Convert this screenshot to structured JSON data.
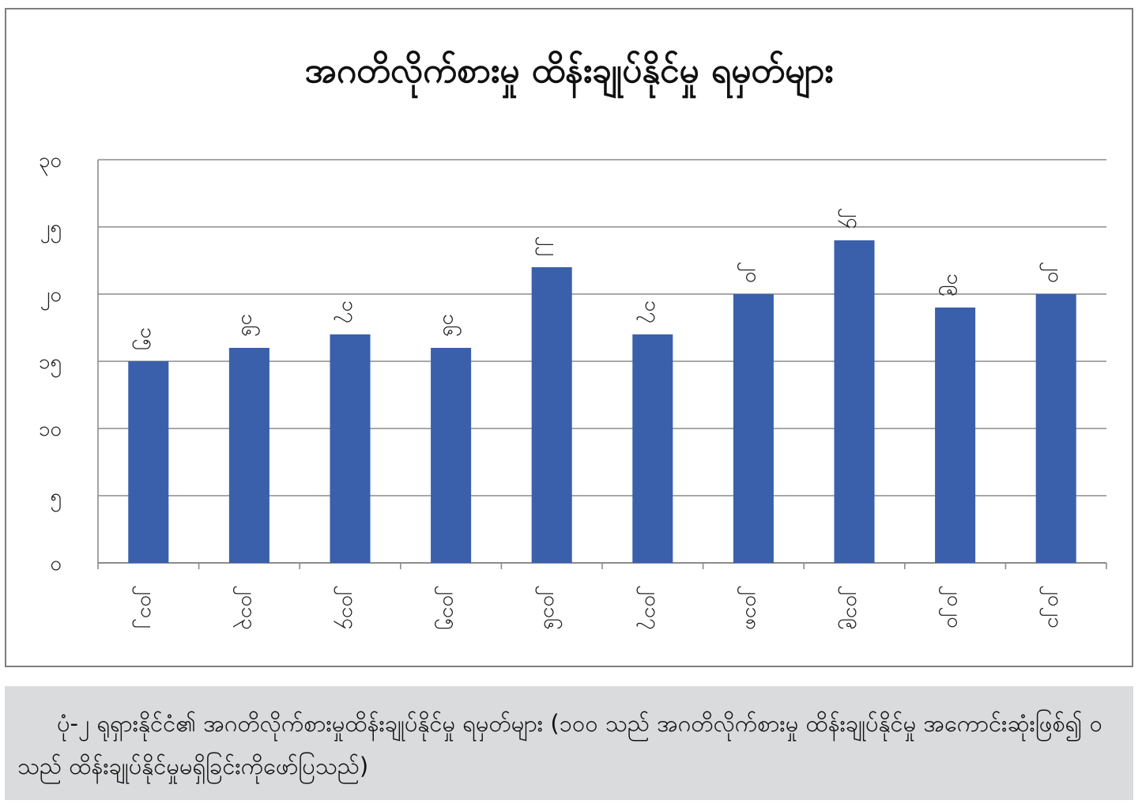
{
  "chart_data": {
    "type": "bar",
    "title": "အဂတိလိုက်စားမှု ထိန်းချုပ်နိုင်မှု ရမှတ်များ",
    "categories": [
      "၂၀၁၂",
      "၂၀၁၃",
      "၂၀၁၄",
      "၂၀၁၅",
      "၂၀၁၆",
      "၂၀၁၇",
      "၂၀၁၈",
      "၂၀၁၉",
      "၂၀၂၀",
      "၂၀၂၁"
    ],
    "values": [
      15,
      16,
      17,
      16,
      22,
      17,
      20,
      24,
      19,
      20
    ],
    "data_labels": [
      "၁၅",
      "၁၆",
      "၁၇",
      "၁၆",
      "၂၂",
      "၁၇",
      "၂၀",
      "၂၄",
      "၁၉",
      "၂၀"
    ],
    "yticks": [
      0,
      5,
      10,
      15,
      20,
      25,
      30
    ],
    "ytick_labels": [
      "၀",
      "၅",
      "၁၀",
      "၁၅",
      "၂၀",
      "၂၅",
      "၃၀"
    ],
    "ylim": [
      0,
      30
    ],
    "xlabel": "",
    "ylabel": "",
    "grid": true,
    "bar_color": "#3a60ab",
    "grid_color": "#8c8c8c"
  },
  "caption": {
    "text": "ပုံ-၂ ရုရှားနိုင်ငံ၏ အဂတိလိုက်စားမှုထိန်းချုပ်နိုင်မှု ရမှတ်များ (၁၀၀ သည် အဂတိလိုက်စားမှု ထိန်းချုပ်နိုင်မှု အကောင်းဆုံးဖြစ်၍ ၀ သည် ထိန်းချုပ်နိုင်မှုမရှိခြင်းကိုဖော်ပြသည်)"
  }
}
